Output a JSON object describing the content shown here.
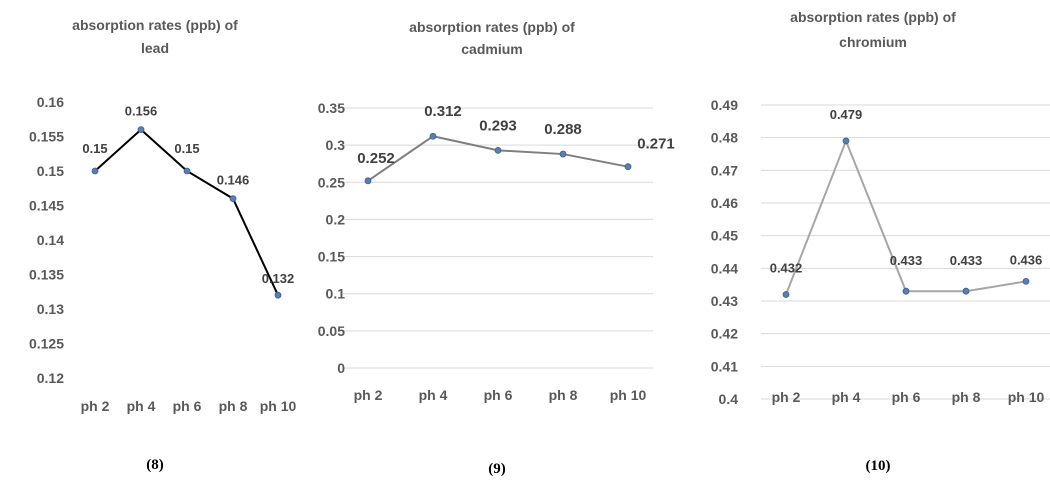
{
  "chart_data": [
    {
      "type": "line",
      "title_lines": [
        "absorption rates (ppb) of",
        "lead"
      ],
      "categories": [
        "ph 2",
        "ph 4",
        "ph 6",
        "ph 8",
        "ph 10"
      ],
      "values": [
        0.15,
        0.156,
        0.15,
        0.146,
        0.132
      ],
      "data_labels": [
        "0.15",
        "0.156",
        "0.15",
        "0.146",
        "0.132"
      ],
      "ylim": [
        0.12,
        0.16
      ],
      "yticks": [
        "0.12",
        "0.125",
        "0.13",
        "0.135",
        "0.14",
        "0.145",
        "0.15",
        "0.155",
        "0.16"
      ],
      "line_color": "#000000",
      "marker_color": "#5b7db1",
      "grid": false,
      "caption": "(8)"
    },
    {
      "type": "line",
      "title_lines": [
        "absorption rates (ppb) of",
        "cadmium"
      ],
      "categories": [
        "ph 2",
        "ph 4",
        "ph 6",
        "ph 8",
        "ph 10"
      ],
      "values": [
        0.252,
        0.312,
        0.293,
        0.288,
        0.271
      ],
      "data_labels": [
        "0.252",
        "0.312",
        "0.293",
        "0.288",
        "0.271"
      ],
      "ylim": [
        0,
        0.35
      ],
      "yticks": [
        "0",
        "0.05",
        "0.1",
        "0.15",
        "0.2",
        "0.25",
        "0.3",
        "0.35"
      ],
      "line_color": "#7f7f7f",
      "marker_color": "#5b7db1",
      "grid": true,
      "caption": "(9)"
    },
    {
      "type": "line",
      "title_lines": [
        "absorption rates (ppb) of",
        "chromium"
      ],
      "categories": [
        "ph 2",
        "ph 4",
        "ph 6",
        "ph 8",
        "ph 10"
      ],
      "values": [
        0.432,
        0.479,
        0.433,
        0.433,
        0.436
      ],
      "data_labels": [
        "0.432",
        "0.479",
        "0.433",
        "0.433",
        "0.436"
      ],
      "ylim": [
        0.4,
        0.49
      ],
      "yticks": [
        "0.4",
        "0.41",
        "0.42",
        "0.43",
        "0.44",
        "0.45",
        "0.46",
        "0.47",
        "0.48",
        "0.49"
      ],
      "line_color": "#a6a6a6",
      "marker_color": "#5b7db1",
      "grid": true,
      "caption": "(10)"
    }
  ]
}
